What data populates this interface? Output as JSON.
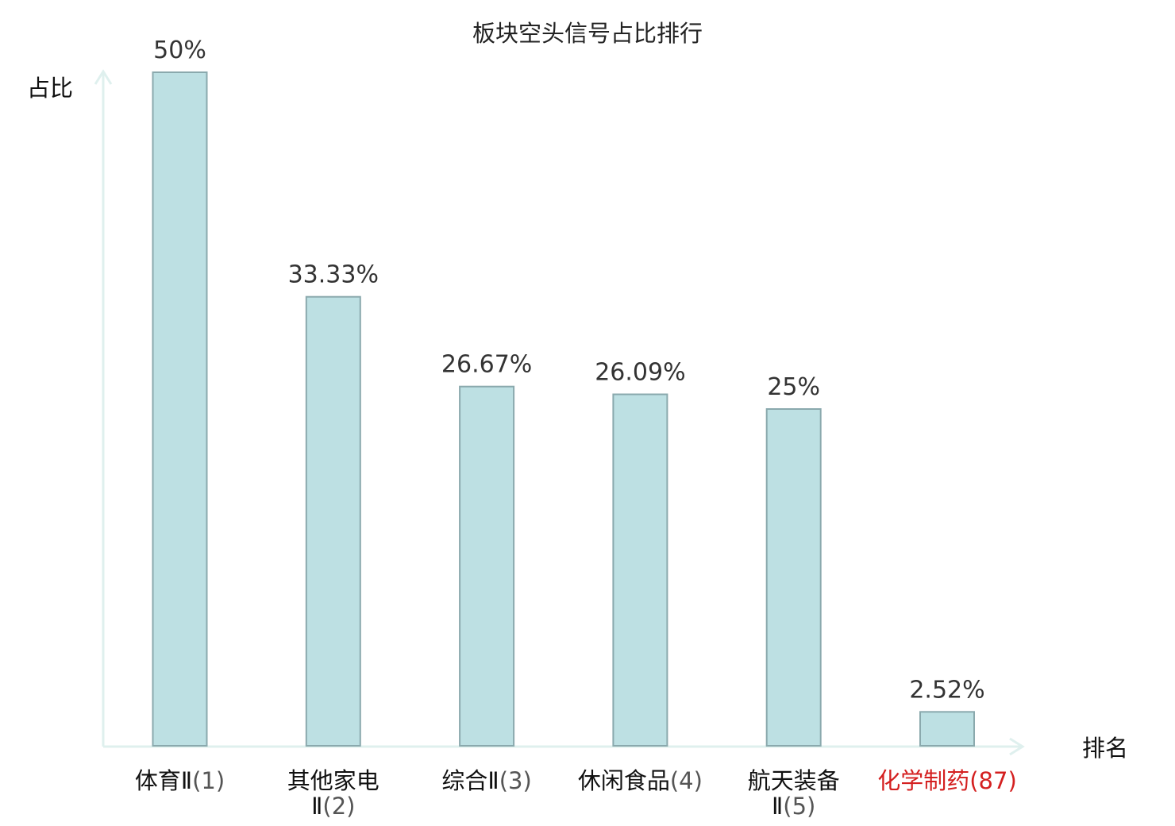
{
  "chart_data": {
    "type": "bar",
    "title": "板块空头信号占比排行",
    "ylabel": "占比",
    "xlabel": "排名",
    "ylim": [
      0,
      50
    ],
    "grid": false,
    "categories": [
      {
        "name_lines": [
          "体育Ⅱ"
        ],
        "rank": "(1)",
        "highlight": false
      },
      {
        "name_lines": [
          "其他家电",
          "Ⅱ"
        ],
        "rank": "(2)",
        "highlight": false
      },
      {
        "name_lines": [
          "综合Ⅱ"
        ],
        "rank": "(3)",
        "highlight": false
      },
      {
        "name_lines": [
          "休闲食品"
        ],
        "rank": "(4)",
        "highlight": false
      },
      {
        "name_lines": [
          "航天装备",
          "Ⅱ"
        ],
        "rank": "(5)",
        "highlight": false
      },
      {
        "name_lines": [
          "化学制药"
        ],
        "rank": "(87)",
        "highlight": true
      }
    ],
    "values": [
      50,
      33.33,
      26.67,
      26.09,
      25,
      2.52
    ],
    "value_labels": [
      "50%",
      "33.33%",
      "26.67%",
      "26.09%",
      "25%",
      "2.52%"
    ],
    "colors": {
      "bar_fill": "#bde0e3",
      "bar_stroke": "#8aa9ad",
      "axis": "#dff0ee",
      "highlight_text": "#d42020"
    }
  }
}
